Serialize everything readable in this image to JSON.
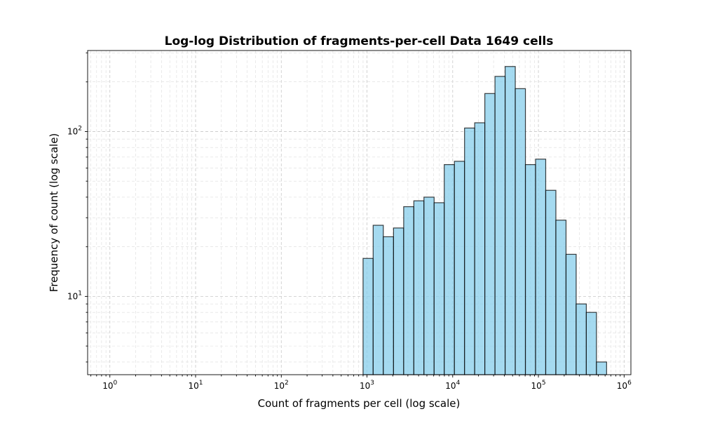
{
  "chart_data": {
    "type": "bar",
    "title": "Log-log Distribution of fragments-per-cell Data 1649 cells",
    "xlabel": "Count of fragments per cell (log scale)",
    "ylabel": "Frequency of count (log scale)",
    "xscale": "log",
    "yscale": "log",
    "xlim": [
      0.55,
      1200000
    ],
    "ylim": [
      3.35,
      310
    ],
    "grid": true,
    "x_ticks": [
      {
        "value": 1,
        "base": "10",
        "exp": "0"
      },
      {
        "value": 10,
        "base": "10",
        "exp": "1"
      },
      {
        "value": 100,
        "base": "10",
        "exp": "2"
      },
      {
        "value": 1000,
        "base": "10",
        "exp": "3"
      },
      {
        "value": 10000,
        "base": "10",
        "exp": "4"
      },
      {
        "value": 100000,
        "base": "10",
        "exp": "5"
      },
      {
        "value": 1000000,
        "base": "10",
        "exp": "6"
      }
    ],
    "y_ticks": [
      {
        "value": 10,
        "base": "10",
        "exp": "1"
      },
      {
        "value": 100,
        "base": "10",
        "exp": "2"
      }
    ],
    "bins": [
      {
        "x0": 900,
        "x1": 1180,
        "count": 17
      },
      {
        "x0": 1180,
        "x1": 1550,
        "count": 27
      },
      {
        "x0": 1550,
        "x1": 2040,
        "count": 23
      },
      {
        "x0": 2040,
        "x1": 2680,
        "count": 26
      },
      {
        "x0": 2680,
        "x1": 3520,
        "count": 35
      },
      {
        "x0": 3520,
        "x1": 4620,
        "count": 38
      },
      {
        "x0": 4620,
        "x1": 6070,
        "count": 40
      },
      {
        "x0": 6070,
        "x1": 7970,
        "count": 37
      },
      {
        "x0": 7970,
        "x1": 10470,
        "count": 63
      },
      {
        "x0": 10470,
        "x1": 13750,
        "count": 66
      },
      {
        "x0": 13750,
        "x1": 18050,
        "count": 105
      },
      {
        "x0": 18050,
        "x1": 23710,
        "count": 113
      },
      {
        "x0": 23710,
        "x1": 31140,
        "count": 170
      },
      {
        "x0": 31140,
        "x1": 40900,
        "count": 216
      },
      {
        "x0": 40900,
        "x1": 53720,
        "count": 248
      },
      {
        "x0": 53720,
        "x1": 70560,
        "count": 182
      },
      {
        "x0": 70560,
        "x1": 92670,
        "count": 63
      },
      {
        "x0": 92670,
        "x1": 121700,
        "count": 68
      },
      {
        "x0": 121700,
        "x1": 159900,
        "count": 44
      },
      {
        "x0": 159900,
        "x1": 210000,
        "count": 29
      },
      {
        "x0": 210000,
        "x1": 275800,
        "count": 18
      },
      {
        "x0": 275800,
        "x1": 362200,
        "count": 9
      },
      {
        "x0": 362200,
        "x1": 475700,
        "count": 8
      },
      {
        "x0": 475700,
        "x1": 624800,
        "count": 4
      }
    ],
    "colors": {
      "bar_fill": "#87ceeb",
      "bar_edge": "#000000"
    }
  }
}
